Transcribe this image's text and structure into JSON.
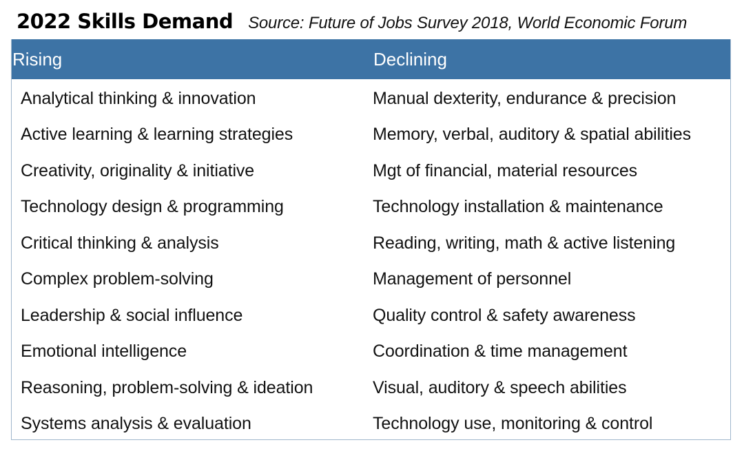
{
  "header": {
    "title": "2022 Skills Demand",
    "source": "Source: Future of Jobs Survey 2018, World Economic Forum"
  },
  "colors": {
    "header_bg": "#3d73a5",
    "header_text": "#ffffff",
    "border": "#9fb6cc"
  },
  "table": {
    "columns": [
      "Rising",
      "Declining"
    ],
    "rows": [
      [
        "Analytical thinking & innovation",
        "Manual dexterity, endurance & precision"
      ],
      [
        "Active learning & learning strategies",
        "Memory, verbal, auditory & spatial abilities"
      ],
      [
        "Creativity, originality & initiative",
        "Mgt of financial, material resources"
      ],
      [
        "Technology design & programming",
        "Technology installation & maintenance"
      ],
      [
        "Critical thinking & analysis",
        "Reading, writing, math & active listening"
      ],
      [
        "Complex problem-solving",
        "Management of personnel"
      ],
      [
        "Leadership & social influence",
        "Quality control & safety awareness"
      ],
      [
        "Emotional intelligence",
        "Coordination & time management"
      ],
      [
        "Reasoning, problem-solving & ideation",
        "Visual, auditory & speech abilities"
      ],
      [
        "Systems analysis & evaluation",
        "Technology use, monitoring & control"
      ]
    ]
  }
}
